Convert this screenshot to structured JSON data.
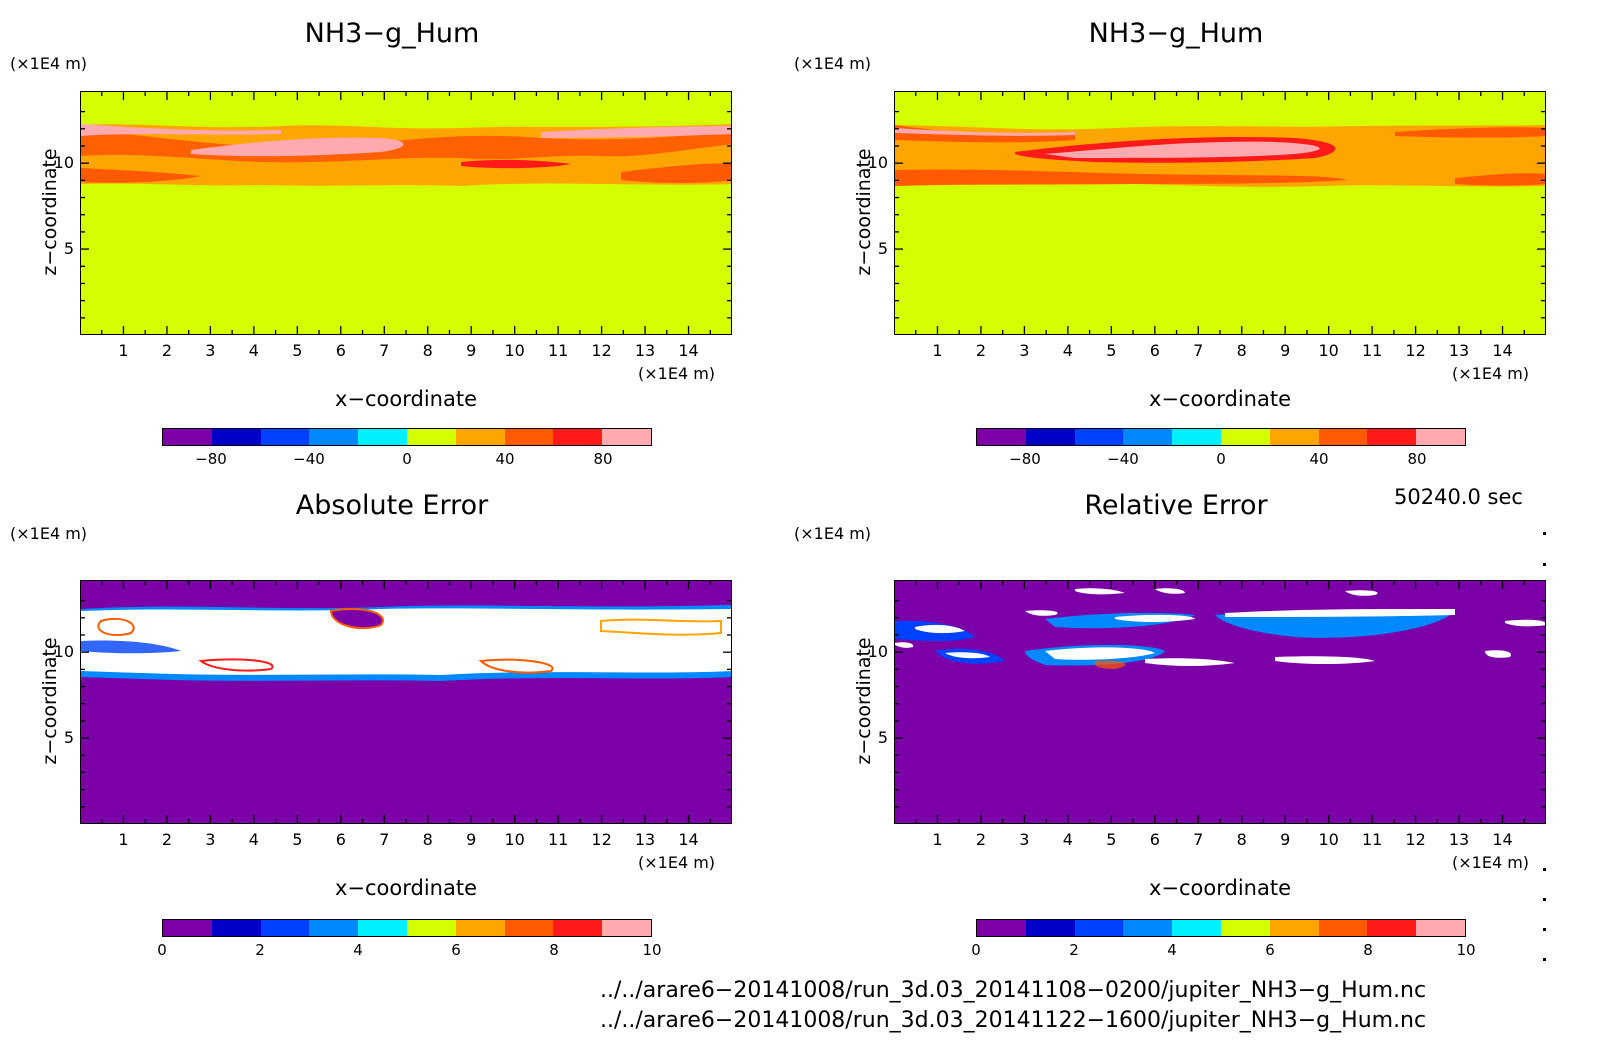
{
  "panels": [
    {
      "title": "NH3−g_Hum",
      "kind": "field",
      "z_unit": "(×1E4 m)",
      "x_unit": "(×1E4 m)",
      "ylabel": "z−coordinate",
      "xlabel": "x−coordinate"
    },
    {
      "title": "NH3−g_Hum",
      "kind": "field",
      "z_unit": "(×1E4 m)",
      "x_unit": "(×1E4 m)",
      "ylabel": "z−coordinate",
      "xlabel": "x−coordinate"
    },
    {
      "title": "Absolute Error",
      "kind": "error",
      "z_unit": "(×1E4 m)",
      "x_unit": "(×1E4 m)",
      "ylabel": "z−coordinate",
      "xlabel": "x−coordinate"
    },
    {
      "title": "Relative Error",
      "kind": "error",
      "z_unit": "(×1E4 m)",
      "x_unit": "(×1E4 m)",
      "ylabel": "z−coordinate",
      "xlabel": "x−coordinate"
    }
  ],
  "chart_data": {
    "type": "heatmap",
    "x_ticks": [
      "1",
      "2",
      "3",
      "4",
      "5",
      "6",
      "7",
      "8",
      "9",
      "10",
      "11",
      "12",
      "13",
      "14"
    ],
    "z_ticks": [
      "5",
      "10"
    ],
    "xlim": [
      0,
      15
    ],
    "zlim": [
      0,
      14.2
    ],
    "colorbar_field": {
      "labels": [
        "−80",
        "−40",
        "0",
        "40",
        "80"
      ],
      "range": [
        -100,
        100
      ]
    },
    "colorbar_error": {
      "labels": [
        "0",
        "2",
        "4",
        "6",
        "8",
        "10"
      ],
      "range": [
        0,
        10
      ]
    },
    "colors": [
      "#7b00a8",
      "#0000c8",
      "#0040ff",
      "#0088ff",
      "#00f0ff",
      "#d4ff00",
      "#ffa500",
      "#ff5a00",
      "#ff1a1a",
      "#ffaab0"
    ],
    "background_field_color": "#d4ff00",
    "background_error_color": "#7b00a8"
  },
  "time_label": "50240.0 sec",
  "files": [
    "../../arare6−20141008/run_3d.03_20141108−0200/jupiter_NH3−g_Hum.nc",
    "../../arare6−20141008/run_3d.03_20141122−1600/jupiter_NH3−g_Hum.nc"
  ]
}
